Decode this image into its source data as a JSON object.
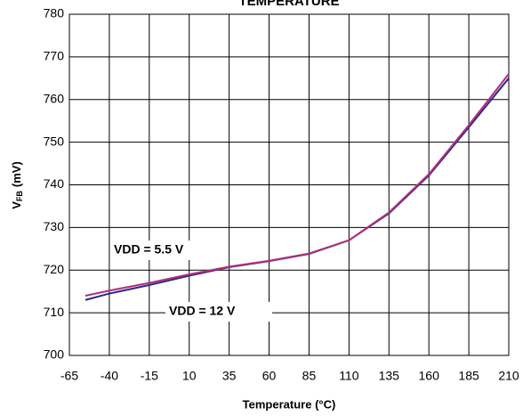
{
  "chart_data": {
    "type": "line",
    "title": "TEMPERATURE",
    "xlabel": "Temperature (°C)",
    "ylabel": {
      "symbol": "V",
      "subscript": "FB",
      "unit": "(mV)"
    },
    "x": [
      -55,
      -40,
      -15,
      10,
      35,
      60,
      85,
      110,
      135,
      160,
      185,
      210
    ],
    "series": [
      {
        "name": "VDD = 12 V",
        "color": "#2a2a8c",
        "values": [
          713,
          714.5,
          716.5,
          718.7,
          720.7,
          722.1,
          723.8,
          727,
          733.3,
          742.2,
          753.5,
          765
        ]
      },
      {
        "name": "VDD = 5.5 V",
        "color": "#b0307a",
        "values": [
          714,
          715.2,
          717,
          719,
          720.8,
          722.2,
          723.9,
          727,
          733.5,
          742.5,
          754,
          766
        ]
      }
    ],
    "xlim": [
      -65,
      210
    ],
    "xticks": [
      -65,
      -40,
      -15,
      10,
      35,
      60,
      85,
      110,
      135,
      160,
      185,
      210
    ],
    "ylim": [
      700,
      780
    ],
    "yticks": [
      700,
      710,
      720,
      730,
      740,
      750,
      760,
      770,
      780
    ],
    "grid": true
  }
}
